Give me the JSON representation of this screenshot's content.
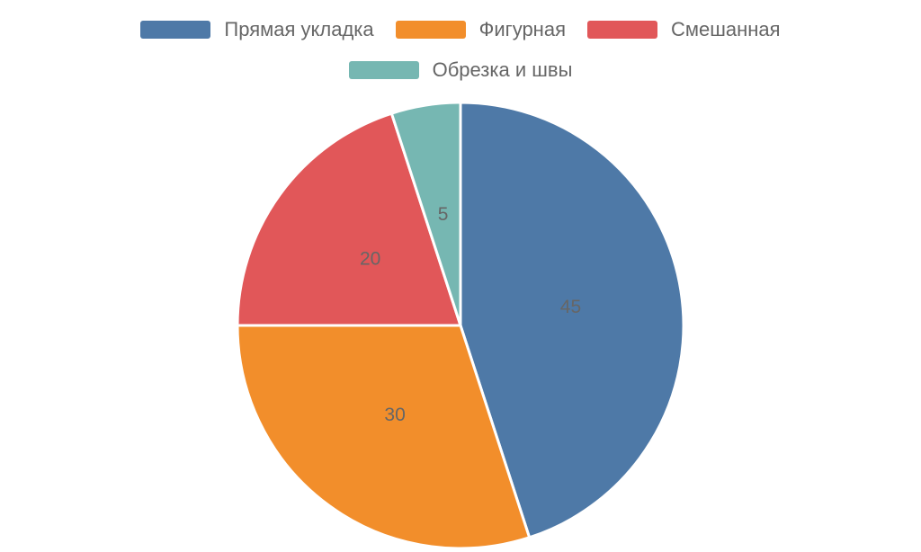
{
  "chart_data": {
    "type": "pie",
    "categories": [
      "Прямая укладка",
      "Фигурная",
      "Смешанная",
      "Обрезка и швы"
    ],
    "values": [
      45,
      30,
      20,
      5
    ],
    "colors": [
      "#4e79a7",
      "#f28e2b",
      "#e15759",
      "#76b7b2"
    ],
    "legend": "top"
  }
}
